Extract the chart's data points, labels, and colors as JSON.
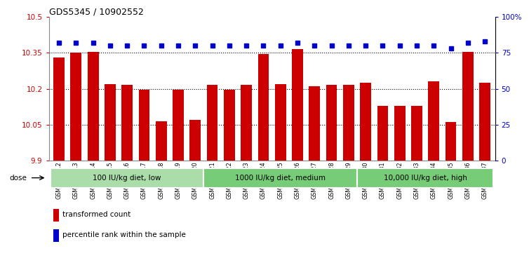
{
  "title": "GDS5345 / 10902552",
  "samples": [
    "GSM1502412",
    "GSM1502413",
    "GSM1502414",
    "GSM1502415",
    "GSM1502416",
    "GSM1502417",
    "GSM1502418",
    "GSM1502419",
    "GSM1502420",
    "GSM1502421",
    "GSM1502422",
    "GSM1502423",
    "GSM1502424",
    "GSM1502425",
    "GSM1502426",
    "GSM1502427",
    "GSM1502428",
    "GSM1502429",
    "GSM1502430",
    "GSM1502431",
    "GSM1502432",
    "GSM1502433",
    "GSM1502434",
    "GSM1502435",
    "GSM1502436",
    "GSM1502437"
  ],
  "bar_values": [
    10.33,
    10.35,
    10.355,
    10.22,
    10.215,
    10.197,
    10.065,
    10.197,
    10.07,
    10.215,
    10.197,
    10.215,
    10.345,
    10.22,
    10.365,
    10.21,
    10.215,
    10.215,
    10.225,
    10.13,
    10.13,
    10.13,
    10.23,
    10.06,
    10.355,
    10.225
  ],
  "percentile_values": [
    82,
    82,
    82,
    80,
    80,
    80,
    80,
    80,
    80,
    80,
    80,
    80,
    80,
    80,
    82,
    80,
    80,
    80,
    80,
    80,
    80,
    80,
    80,
    78,
    82,
    83
  ],
  "bar_color": "#cc0000",
  "percentile_color": "#0000cc",
  "ylim_left": [
    9.9,
    10.5
  ],
  "ylim_right": [
    0,
    100
  ],
  "yticks_left": [
    9.9,
    10.05,
    10.2,
    10.35,
    10.5
  ],
  "yticks_right": [
    0,
    25,
    50,
    75,
    100
  ],
  "ytick_labels_right": [
    "0",
    "25",
    "50",
    "75",
    "100%"
  ],
  "grid_values": [
    10.05,
    10.2,
    10.35
  ],
  "group_definitions": [
    {
      "start": 0,
      "end": 9,
      "color": "#aaddaa",
      "label": "100 IU/kg diet, low"
    },
    {
      "start": 9,
      "end": 18,
      "color": "#77cc77",
      "label": "1000 IU/kg diet, medium"
    },
    {
      "start": 18,
      "end": 26,
      "color": "#77cc77",
      "label": "10,000 IU/kg diet, high"
    }
  ],
  "legend_items": [
    {
      "label": "transformed count",
      "color": "#cc0000"
    },
    {
      "label": "percentile rank within the sample",
      "color": "#0000cc"
    }
  ],
  "dose_label": "dose"
}
